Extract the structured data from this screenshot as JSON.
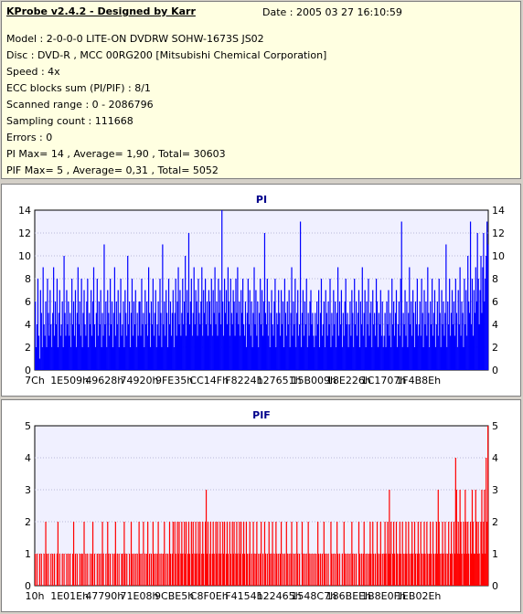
{
  "header": {
    "title": "KProbe v2.4.2 - Designed by Karr",
    "date": "Date : 2005 03 27 16:10:59",
    "lines": [
      "Model : 2-0-0-0 LITE-ON DVDRW SOHW-1673S JS02",
      "Disc : DVD-R , MCC 00RG200  [Mitsubishi Chemical Corporation]",
      "Speed : 4x",
      "ECC blocks sum (PI/PIF) : 8/1",
      "Scanned range : 0 - 2086796",
      "Sampling count : 111668",
      "Errors : 0",
      "PI Max= 14 , Average= 1,90 , Total= 30603",
      "PIF Max= 5 , Average= 0,31 , Total= 5052"
    ]
  },
  "colors": {
    "pi": "#0000ff",
    "pif": "#ff0000"
  },
  "chart_data": [
    {
      "type": "bar",
      "title": "PI",
      "ylim": [
        0,
        14
      ],
      "yticks": [
        0,
        2,
        4,
        6,
        8,
        10,
        12,
        14
      ],
      "xticklabels": [
        "7Ch",
        "1E509h",
        "49628h",
        "74920h",
        "9FE35h",
        "CC14Fh",
        "F8224h",
        "127651h",
        "15B009h",
        "18E226h",
        "1C1707h",
        "1F4B8Eh"
      ],
      "grid": true,
      "samples_per_tick": 40,
      "values": [
        6,
        2,
        4,
        8,
        3,
        1,
        7,
        5,
        2,
        9,
        4,
        3,
        6,
        2,
        8,
        5,
        3,
        7,
        4,
        2,
        5,
        9,
        3,
        6,
        4,
        8,
        2,
        5,
        7,
        3,
        4,
        6,
        2,
        10,
        5,
        3,
        7,
        4,
        6,
        3,
        5,
        2,
        8,
        4,
        6,
        3,
        7,
        2,
        5,
        9,
        4,
        6,
        3,
        8,
        2,
        5,
        7,
        4,
        3,
        6,
        8,
        2,
        5,
        4,
        7,
        3,
        6,
        9,
        4,
        2,
        5,
        8,
        3,
        6,
        4,
        7,
        2,
        5,
        3,
        11,
        4,
        6,
        2,
        7,
        5,
        3,
        8,
        4,
        6,
        2,
        5,
        9,
        3,
        6,
        4,
        7,
        2,
        5,
        8,
        3,
        4,
        6,
        2,
        7,
        5,
        3,
        10,
        4,
        6,
        2,
        5,
        8,
        3,
        6,
        4,
        7,
        2,
        5,
        3,
        6,
        6,
        3,
        8,
        4,
        5,
        2,
        7,
        4,
        6,
        3,
        9,
        5,
        2,
        6,
        4,
        8,
        3,
        5,
        7,
        2,
        4,
        6,
        3,
        8,
        5,
        2,
        11,
        4,
        6,
        3,
        7,
        5,
        2,
        8,
        4,
        6,
        3,
        5,
        7,
        2,
        5,
        8,
        3,
        6,
        9,
        4,
        7,
        3,
        5,
        8,
        4,
        6,
        10,
        3,
        7,
        5,
        12,
        4,
        6,
        8,
        3,
        5,
        9,
        4,
        7,
        6,
        3,
        8,
        5,
        4,
        6,
        9,
        3,
        7,
        5,
        8,
        4,
        6,
        3,
        7,
        6,
        4,
        8,
        3,
        7,
        5,
        9,
        4,
        6,
        3,
        8,
        5,
        7,
        4,
        14,
        6,
        3,
        8,
        5,
        7,
        4,
        9,
        6,
        3,
        8,
        5,
        4,
        7,
        6,
        3,
        8,
        5,
        9,
        4,
        6,
        3,
        7,
        5,
        8,
        4,
        3,
        6,
        2,
        5,
        8,
        4,
        7,
        3,
        6,
        2,
        5,
        9,
        4,
        7,
        3,
        6,
        2,
        5,
        8,
        4,
        7,
        3,
        6,
        12,
        5,
        4,
        8,
        3,
        6,
        2,
        5,
        7,
        4,
        3,
        6,
        8,
        2,
        5,
        4,
        7,
        5,
        3,
        7,
        4,
        6,
        2,
        8,
        5,
        3,
        6,
        4,
        7,
        2,
        5,
        9,
        3,
        6,
        4,
        8,
        2,
        5,
        7,
        3,
        4,
        13,
        2,
        5,
        7,
        3,
        6,
        4,
        8,
        2,
        5,
        3,
        6,
        7,
        4,
        5,
        3,
        2,
        5,
        3,
        6,
        4,
        7,
        2,
        5,
        8,
        3,
        4,
        6,
        2,
        7,
        5,
        3,
        6,
        4,
        8,
        2,
        5,
        3,
        7,
        4,
        6,
        2,
        5,
        9,
        3,
        6,
        4,
        7,
        2,
        5,
        3,
        6,
        8,
        4,
        5,
        2,
        4,
        6,
        3,
        7,
        5,
        2,
        8,
        4,
        6,
        3,
        5,
        7,
        2,
        6,
        4,
        9,
        3,
        5,
        7,
        2,
        6,
        4,
        8,
        3,
        5,
        6,
        2,
        7,
        4,
        5,
        3,
        8,
        6,
        2,
        5,
        4,
        7,
        3,
        6,
        2,
        3,
        5,
        2,
        6,
        4,
        7,
        3,
        5,
        2,
        8,
        4,
        6,
        3,
        5,
        7,
        2,
        4,
        6,
        3,
        8,
        13,
        2,
        5,
        4,
        7,
        3,
        6,
        2,
        5,
        9,
        4,
        6,
        3,
        7,
        5,
        2,
        6,
        4,
        8,
        3,
        4,
        6,
        3,
        8,
        5,
        2,
        7,
        4,
        6,
        3,
        9,
        5,
        2,
        6,
        4,
        8,
        3,
        5,
        7,
        2,
        4,
        6,
        3,
        8,
        5,
        2,
        7,
        4,
        6,
        3,
        5,
        11,
        2,
        6,
        4,
        8,
        3,
        5,
        7,
        4,
        6,
        3,
        8,
        5,
        2,
        7,
        4,
        9,
        3,
        6,
        5,
        2,
        8,
        4,
        7,
        3,
        10,
        6,
        5,
        13,
        4,
        8,
        3,
        7,
        5,
        9,
        6,
        12,
        8,
        4,
        7,
        10,
        5,
        9,
        12,
        6,
        8,
        10,
        13,
        11
      ]
    },
    {
      "type": "bar",
      "title": "PIF",
      "ylim": [
        0,
        5
      ],
      "yticks": [
        0,
        1,
        2,
        3,
        4,
        5
      ],
      "xticklabels": [
        "10h",
        "1E01Eh",
        "47790h",
        "71E08h",
        "9CBE5h",
        "C8F0Eh",
        "F4154h",
        "122465h",
        "1548C7h",
        "186BEEh",
        "1B8E0Fh",
        "1EB02Eh"
      ],
      "grid": true,
      "samples_per_tick": 40,
      "values": [
        1,
        0,
        1,
        0,
        0,
        1,
        0,
        1,
        0,
        0,
        1,
        0,
        2,
        1,
        0,
        1,
        0,
        0,
        1,
        0,
        1,
        0,
        1,
        0,
        0,
        1,
        2,
        0,
        1,
        0,
        0,
        1,
        0,
        1,
        0,
        0,
        1,
        0,
        1,
        0,
        1,
        0,
        0,
        1,
        2,
        0,
        1,
        0,
        1,
        0,
        0,
        1,
        0,
        1,
        1,
        0,
        2,
        0,
        1,
        0,
        1,
        0,
        0,
        1,
        0,
        1,
        2,
        0,
        1,
        0,
        0,
        1,
        0,
        1,
        0,
        1,
        0,
        2,
        1,
        0,
        0,
        1,
        0,
        2,
        1,
        0,
        1,
        0,
        0,
        1,
        0,
        1,
        2,
        0,
        1,
        0,
        1,
        0,
        0,
        1,
        1,
        0,
        2,
        1,
        0,
        1,
        0,
        0,
        1,
        0,
        2,
        1,
        0,
        1,
        0,
        1,
        0,
        1,
        0,
        2,
        1,
        0,
        1,
        0,
        2,
        0,
        1,
        0,
        1,
        2,
        0,
        1,
        0,
        1,
        0,
        2,
        1,
        0,
        1,
        0,
        1,
        2,
        0,
        1,
        0,
        1,
        0,
        1,
        2,
        0,
        1,
        0,
        1,
        0,
        2,
        1,
        0,
        1,
        2,
        0,
        2,
        1,
        0,
        2,
        1,
        2,
        0,
        1,
        2,
        1,
        0,
        2,
        1,
        2,
        0,
        1,
        2,
        1,
        0,
        2,
        1,
        2,
        0,
        1,
        2,
        1,
        0,
        2,
        1,
        2,
        0,
        1,
        2,
        1,
        0,
        2,
        3,
        1,
        2,
        0,
        1,
        2,
        0,
        1,
        2,
        1,
        0,
        2,
        1,
        2,
        0,
        1,
        2,
        1,
        0,
        2,
        1,
        2,
        0,
        1,
        2,
        1,
        0,
        2,
        1,
        0,
        2,
        1,
        2,
        0,
        1,
        2,
        1,
        0,
        2,
        1,
        2,
        0,
        1,
        2,
        1,
        0,
        2,
        1,
        0,
        1,
        2,
        0,
        1,
        0,
        2,
        1,
        0,
        1,
        2,
        0,
        1,
        0,
        1,
        2,
        0,
        1,
        0,
        2,
        1,
        0,
        1,
        0,
        2,
        1,
        0,
        1,
        2,
        0,
        1,
        0,
        2,
        1,
        0,
        1,
        0,
        1,
        2,
        0,
        1,
        0,
        1,
        0,
        2,
        1,
        0,
        1,
        0,
        1,
        2,
        0,
        1,
        0,
        1,
        0,
        2,
        1,
        0,
        1,
        0,
        0,
        2,
        1,
        0,
        1,
        0,
        1,
        0,
        2,
        1,
        0,
        1,
        0,
        1,
        0,
        1,
        0,
        1,
        0,
        2,
        1,
        0,
        1,
        0,
        1,
        0,
        2,
        1,
        0,
        1,
        0,
        1,
        0,
        0,
        2,
        1,
        0,
        1,
        0,
        1,
        0,
        2,
        1,
        0,
        1,
        0,
        0,
        1,
        0,
        2,
        1,
        0,
        1,
        0,
        1,
        0,
        1,
        0,
        2,
        1,
        0,
        1,
        0,
        1,
        0,
        0,
        2,
        1,
        0,
        1,
        0,
        1,
        2,
        0,
        1,
        0,
        1,
        0,
        1,
        2,
        1,
        0,
        2,
        1,
        0,
        1,
        0,
        2,
        1,
        0,
        1,
        2,
        0,
        1,
        0,
        1,
        2,
        1,
        0,
        2,
        1,
        3,
        1,
        2,
        0,
        1,
        2,
        1,
        0,
        2,
        1,
        0,
        1,
        2,
        1,
        0,
        2,
        1,
        0,
        1,
        2,
        1,
        0,
        2,
        1,
        0,
        1,
        2,
        1,
        0,
        2,
        1,
        0,
        1,
        2,
        1,
        0,
        2,
        1,
        0,
        1,
        2,
        1,
        0,
        2,
        1,
        0,
        1,
        2,
        1,
        0,
        2,
        1,
        0,
        1,
        2,
        1,
        3,
        2,
        1,
        0,
        1,
        2,
        1,
        0,
        2,
        1,
        0,
        1,
        2,
        0,
        1,
        2,
        1,
        0,
        2,
        1,
        4,
        3,
        1,
        2,
        1,
        3,
        2,
        1,
        0,
        2,
        1,
        3,
        2,
        1,
        2,
        1,
        0,
        2,
        1,
        3,
        2,
        1,
        1,
        3,
        2,
        1,
        2,
        1,
        0,
        2,
        3,
        1,
        2,
        3,
        1,
        4,
        2,
        5
      ]
    }
  ]
}
